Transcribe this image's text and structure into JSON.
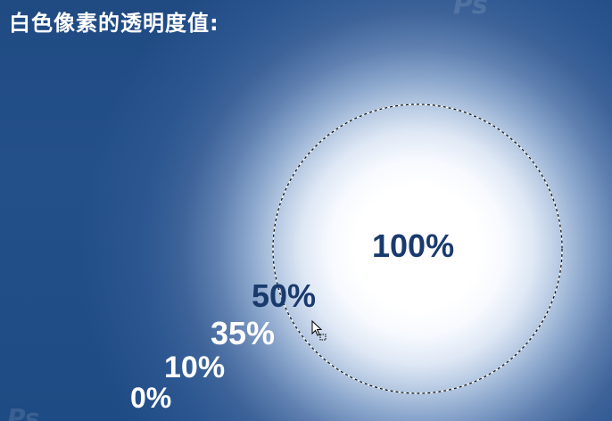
{
  "title": "白色像素的透明度值:",
  "labels": {
    "full": "100%",
    "half": "50%",
    "thirty_five": "35%",
    "ten": "10%",
    "zero": "0%"
  },
  "colors": {
    "background": "#234e86",
    "glow": "#ffffff",
    "dark_label": "#1a3a6e",
    "light_label": "#ffffff"
  },
  "icons": {
    "selection": "marching-ants-circle",
    "cursor": "move-arrow-cursor"
  }
}
